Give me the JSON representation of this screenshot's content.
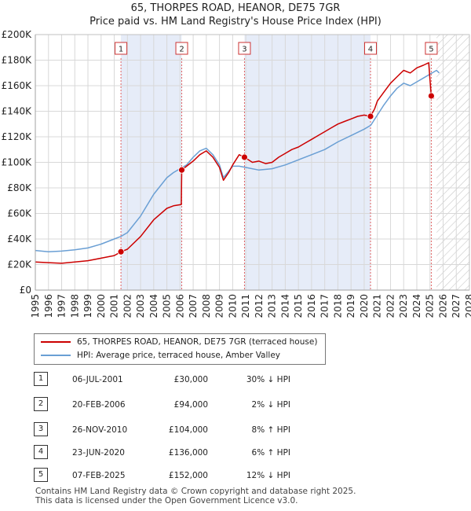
{
  "title": {
    "line1": "65, THORPES ROAD, HEANOR, DE75 7GR",
    "line2": "Price paid vs. HM Land Registry's House Price Index (HPI)"
  },
  "chart_data": {
    "type": "line",
    "title": "65, THORPES ROAD, HEANOR, DE75 7GR",
    "subtitle": "Price paid vs. HM Land Registry's House Price Index (HPI)",
    "xlabel": "",
    "ylabel": "",
    "xlim": [
      1995,
      2028
    ],
    "ylim": [
      0,
      200000
    ],
    "x_ticks": [
      "1995",
      "1996",
      "1997",
      "1998",
      "1999",
      "2000",
      "2001",
      "2002",
      "2003",
      "2004",
      "2005",
      "2006",
      "2007",
      "2008",
      "2009",
      "2010",
      "2011",
      "2012",
      "2013",
      "2014",
      "2015",
      "2016",
      "2017",
      "2018",
      "2019",
      "2020",
      "2021",
      "2022",
      "2023",
      "2024",
      "2025",
      "2026",
      "2027",
      "2028"
    ],
    "y_ticks": [
      {
        "value": 0,
        "label": "£0"
      },
      {
        "value": 20000,
        "label": "£20K"
      },
      {
        "value": 40000,
        "label": "£40K"
      },
      {
        "value": 60000,
        "label": "£60K"
      },
      {
        "value": 80000,
        "label": "£80K"
      },
      {
        "value": 100000,
        "label": "£100K"
      },
      {
        "value": 120000,
        "label": "£120K"
      },
      {
        "value": 140000,
        "label": "£140K"
      },
      {
        "value": 160000,
        "label": "£160K"
      },
      {
        "value": 180000,
        "label": "£180K"
      },
      {
        "value": 200000,
        "label": "£200K"
      }
    ],
    "grid": true,
    "forecast_region_start": 2025.5,
    "sale_periods": [
      [
        2001.5,
        2006.13
      ],
      [
        2010.9,
        2020.48
      ]
    ],
    "series": [
      {
        "name": "65, THORPES ROAD, HEANOR, DE75 7GR (terraced house)",
        "color": "#cc0000",
        "points": [
          [
            1995.0,
            22000
          ],
          [
            1996.0,
            21500
          ],
          [
            1997.0,
            21000
          ],
          [
            1998.0,
            22000
          ],
          [
            1999.0,
            23000
          ],
          [
            2000.0,
            25000
          ],
          [
            2001.0,
            27000
          ],
          [
            2001.51,
            30000
          ],
          [
            2002.0,
            32000
          ],
          [
            2003.0,
            42000
          ],
          [
            2004.0,
            55000
          ],
          [
            2005.0,
            64000
          ],
          [
            2005.5,
            66000
          ],
          [
            2006.1,
            67000
          ],
          [
            2006.13,
            94000
          ],
          [
            2006.5,
            97000
          ],
          [
            2007.0,
            101000
          ],
          [
            2007.5,
            106000
          ],
          [
            2008.0,
            109000
          ],
          [
            2008.5,
            104000
          ],
          [
            2009.0,
            96000
          ],
          [
            2009.3,
            86000
          ],
          [
            2009.7,
            92000
          ],
          [
            2010.0,
            98000
          ],
          [
            2010.5,
            106000
          ],
          [
            2010.9,
            104000
          ],
          [
            2011.5,
            100000
          ],
          [
            2012.0,
            101000
          ],
          [
            2012.5,
            99000
          ],
          [
            2013.0,
            100000
          ],
          [
            2013.5,
            104000
          ],
          [
            2014.0,
            107000
          ],
          [
            2014.5,
            110000
          ],
          [
            2015.0,
            112000
          ],
          [
            2015.5,
            115000
          ],
          [
            2016.0,
            118000
          ],
          [
            2016.5,
            121000
          ],
          [
            2017.0,
            124000
          ],
          [
            2017.5,
            127000
          ],
          [
            2018.0,
            130000
          ],
          [
            2018.5,
            132000
          ],
          [
            2019.0,
            134000
          ],
          [
            2019.5,
            136000
          ],
          [
            2020.0,
            137000
          ],
          [
            2020.48,
            136000
          ],
          [
            2020.8,
            142000
          ],
          [
            2021.0,
            148000
          ],
          [
            2021.5,
            155000
          ],
          [
            2022.0,
            162000
          ],
          [
            2022.5,
            167000
          ],
          [
            2023.0,
            172000
          ],
          [
            2023.5,
            170000
          ],
          [
            2024.0,
            174000
          ],
          [
            2024.5,
            176000
          ],
          [
            2024.9,
            178000
          ],
          [
            2025.0,
            165000
          ],
          [
            2025.1,
            152000
          ],
          [
            2025.3,
            150000
          ]
        ]
      },
      {
        "name": "HPI: Average price, terraced house, Amber Valley",
        "color": "#6a9fd4",
        "points": [
          [
            1995.0,
            31000
          ],
          [
            1996.0,
            30000
          ],
          [
            1997.0,
            30500
          ],
          [
            1998.0,
            31500
          ],
          [
            1999.0,
            33000
          ],
          [
            2000.0,
            36000
          ],
          [
            2001.0,
            40000
          ],
          [
            2001.5,
            42000
          ],
          [
            2002.0,
            45000
          ],
          [
            2003.0,
            58000
          ],
          [
            2004.0,
            75000
          ],
          [
            2005.0,
            88000
          ],
          [
            2005.5,
            92000
          ],
          [
            2006.0,
            95000
          ],
          [
            2006.5,
            98000
          ],
          [
            2007.0,
            104000
          ],
          [
            2007.5,
            109000
          ],
          [
            2008.0,
            111000
          ],
          [
            2008.5,
            106000
          ],
          [
            2009.0,
            98000
          ],
          [
            2009.3,
            88000
          ],
          [
            2009.7,
            93000
          ],
          [
            2010.0,
            97000
          ],
          [
            2010.5,
            97000
          ],
          [
            2011.0,
            96000
          ],
          [
            2012.0,
            94000
          ],
          [
            2013.0,
            95000
          ],
          [
            2014.0,
            98000
          ],
          [
            2015.0,
            102000
          ],
          [
            2016.0,
            106000
          ],
          [
            2017.0,
            110000
          ],
          [
            2018.0,
            116000
          ],
          [
            2019.0,
            121000
          ],
          [
            2020.0,
            126000
          ],
          [
            2020.5,
            129000
          ],
          [
            2021.0,
            137000
          ],
          [
            2021.5,
            145000
          ],
          [
            2022.0,
            152000
          ],
          [
            2022.5,
            158000
          ],
          [
            2023.0,
            162000
          ],
          [
            2023.5,
            160000
          ],
          [
            2024.0,
            163000
          ],
          [
            2024.5,
            166000
          ],
          [
            2025.0,
            169000
          ],
          [
            2025.5,
            172000
          ],
          [
            2025.7,
            170000
          ]
        ]
      }
    ],
    "sales": [
      {
        "id": "1",
        "year": 2001.51,
        "price": 30000
      },
      {
        "id": "2",
        "year": 2006.13,
        "price": 94000
      },
      {
        "id": "3",
        "year": 2010.9,
        "price": 104000
      },
      {
        "id": "4",
        "year": 2020.48,
        "price": 136000
      },
      {
        "id": "5",
        "year": 2025.1,
        "price": 152000
      }
    ]
  },
  "legend": {
    "items": [
      {
        "label": "65, THORPES ROAD, HEANOR, DE75 7GR (terraced house)",
        "color": "#cc0000"
      },
      {
        "label": "HPI: Average price, terraced house, Amber Valley",
        "color": "#6a9fd4"
      }
    ]
  },
  "table": {
    "rows": [
      {
        "id": "1",
        "date": "06-JUL-2001",
        "price": "£30,000",
        "change": "30% ↓ HPI"
      },
      {
        "id": "2",
        "date": "20-FEB-2006",
        "price": "£94,000",
        "change": "2% ↓ HPI"
      },
      {
        "id": "3",
        "date": "26-NOV-2010",
        "price": "£104,000",
        "change": "8% ↑ HPI"
      },
      {
        "id": "4",
        "date": "23-JUN-2020",
        "price": "£136,000",
        "change": "6% ↑ HPI"
      },
      {
        "id": "5",
        "date": "07-FEB-2025",
        "price": "£152,000",
        "change": "12% ↓ HPI"
      }
    ]
  },
  "footer": {
    "line1": "Contains HM Land Registry data © Crown copyright and database right 2025.",
    "line2": "This data is licensed under the Open Government Licence v3.0."
  }
}
